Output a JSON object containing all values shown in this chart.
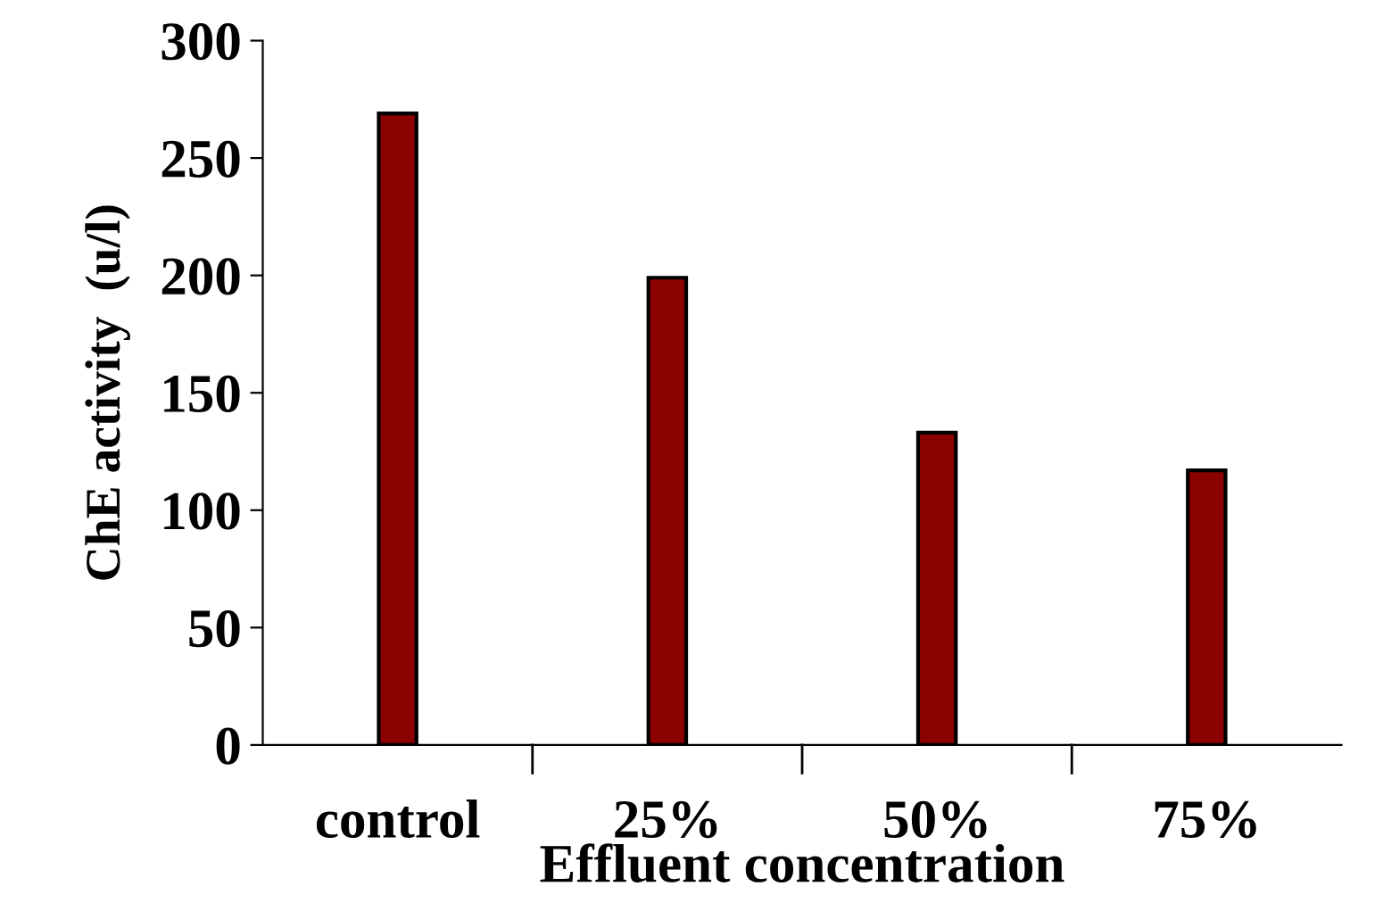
{
  "chart_data": {
    "type": "bar",
    "xlabel": "Effluent concentration",
    "ylabel": "ChE activity  (u/l)",
    "categories": [
      "control",
      "25%",
      "50%",
      "75%"
    ],
    "values": [
      269,
      199,
      133,
      117
    ],
    "color": "#8b0000",
    "ylim": [
      0,
      300
    ],
    "yticks": [
      0,
      50,
      100,
      150,
      200,
      250,
      300
    ],
    "grid": false
  }
}
